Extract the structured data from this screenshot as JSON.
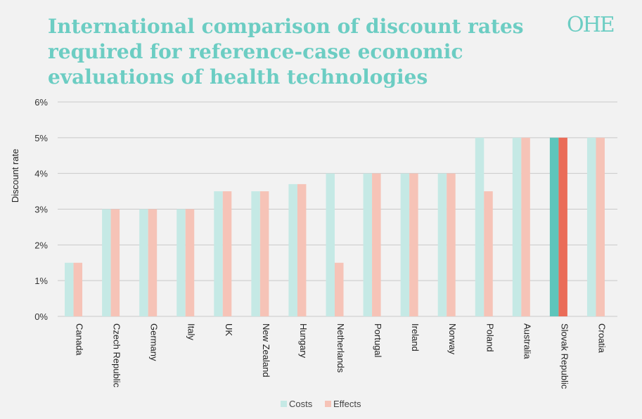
{
  "title": "International comparison of discount rates required for reference-case economic evaluations of health technologies",
  "logo_text": "OHE",
  "colors": {
    "background": "#f2f2f2",
    "title": "#6ccdc3",
    "costs": "#c5e9e5",
    "effects": "#f6c3b7",
    "costs_highlight": "#5dc5bb",
    "effects_highlight": "#ea6c58",
    "grid": "#c9c9c9"
  },
  "chart_data": {
    "type": "bar",
    "title": "International comparison of discount rates required for reference-case economic evaluations of health technologies",
    "ylabel": "Discount rate",
    "xlabel": "",
    "ylim": [
      0,
      6
    ],
    "yticks": [
      "0%",
      "1%",
      "2%",
      "3%",
      "4%",
      "5%",
      "6%"
    ],
    "grid": true,
    "legend_position": "bottom",
    "highlight_category": "Slovak Republic",
    "categories": [
      "Canada",
      "Czech Republic",
      "Germany",
      "Italy",
      "UK",
      "New Zealand",
      "Hungary",
      "Netherlands",
      "Portugal",
      "Ireland",
      "Norway",
      "Poland",
      "Australia",
      "Slovak Republic",
      "Croatia"
    ],
    "series": [
      {
        "name": "Costs",
        "values": [
          1.5,
          3,
          3,
          3,
          3.5,
          3.5,
          3.7,
          4,
          4,
          4,
          4,
          5,
          5,
          5,
          5
        ]
      },
      {
        "name": "Effects",
        "values": [
          1.5,
          3,
          3,
          3,
          3.5,
          3.5,
          3.7,
          1.5,
          4,
          4,
          4,
          3.5,
          5,
          5,
          5
        ]
      }
    ]
  }
}
